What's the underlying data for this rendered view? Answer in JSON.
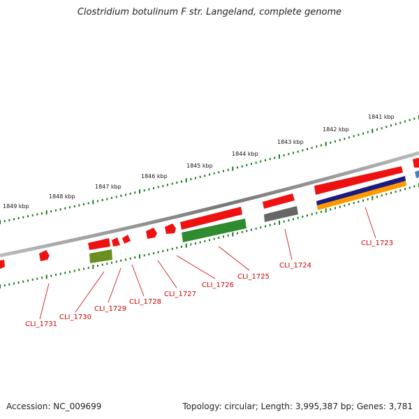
{
  "title": "Clostridium botulinum F str. Langeland, complete genome",
  "accession": "Accession: NC_009699",
  "topology": "Topology: circular; Length: 3,995,387 bp; Genes: 3,781",
  "kbp_labels": [
    "1841 kbp",
    "1842 kbp",
    "1843 kbp",
    "1844 kbp",
    "1845 kbp",
    "1846 kbp",
    "1847 kbp",
    "1848 kbp",
    "1849 kbp"
  ],
  "gene_labels": [
    "CLI_1723",
    "CLI_1724",
    "CLI_1725",
    "CLI_1726",
    "CLI_1727",
    "CLI_1728",
    "CLI_1729",
    "CLI_1730",
    "CLI_1731"
  ],
  "colors": {
    "gene": "#ee1111",
    "cog_green": "#2e8b2e",
    "cog_olive": "#6b8e23",
    "cog_gray": "#666666",
    "cog_navy": "#1a1a80",
    "cog_orange": "#ff9900",
    "backbone": "#888888",
    "tick": "#1a7a1a",
    "label": "#cc0000"
  }
}
